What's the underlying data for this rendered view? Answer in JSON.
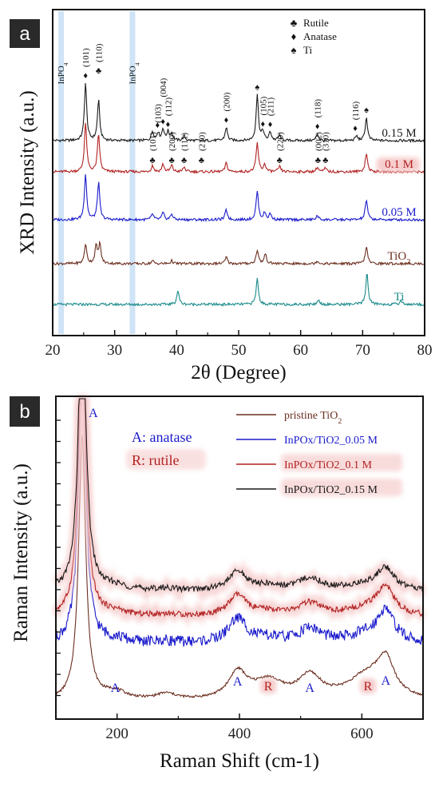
{
  "chart_data": [
    {
      "panel": "a",
      "type": "line",
      "xlabel": "2θ (Degree)",
      "ylabel": "XRD Intensity (a.u.)",
      "xlim": [
        20,
        80
      ],
      "xticks": [
        "20",
        "30",
        "40",
        "50",
        "60",
        "70",
        "80"
      ],
      "highlight_labels": [
        {
          "text": "InPO4",
          "x": 21.3
        },
        {
          "text": "InPO4",
          "x": 32.8
        }
      ],
      "series": [
        {
          "name": "0.15 M",
          "color": "#1a1a1a",
          "offset": 4,
          "peaks": [
            [
              25.3,
              10
            ],
            [
              27.4,
              7
            ],
            [
              36.1,
              1.6
            ],
            [
              37.0,
              1.4
            ],
            [
              37.8,
              2.0
            ],
            [
              38.6,
              1.5
            ],
            [
              39.2,
              1.2
            ],
            [
              41.2,
              0.8
            ],
            [
              48.0,
              2.3
            ],
            [
              53.0,
              8
            ],
            [
              53.9,
              1.6
            ],
            [
              55.1,
              1.5
            ],
            [
              56.6,
              0.9
            ],
            [
              62.7,
              1.2
            ],
            [
              69.0,
              0.8
            ],
            [
              70.6,
              4
            ]
          ]
        },
        {
          "name": "0.1 M",
          "color": "#b22222",
          "offset": 3,
          "peaks": [
            [
              25.3,
              8.5
            ],
            [
              27.4,
              6.5
            ],
            [
              36.1,
              1.1
            ],
            [
              37.8,
              1.3
            ],
            [
              39.2,
              1.1
            ],
            [
              41.2,
              0.8
            ],
            [
              48.0,
              1.5
            ],
            [
              53.0,
              5
            ],
            [
              54.2,
              1.3
            ],
            [
              56.6,
              0.9
            ],
            [
              62.7,
              0.8
            ],
            [
              64.0,
              0.6
            ],
            [
              70.6,
              3.2
            ]
          ]
        },
        {
          "name": "0.05 M",
          "color": "#1a1acc",
          "offset": 2,
          "peaks": [
            [
              25.3,
              8
            ],
            [
              27.4,
              6.5
            ],
            [
              36.1,
              1.0
            ],
            [
              37.8,
              1.2
            ],
            [
              39.2,
              1.0
            ],
            [
              48.0,
              1.7
            ],
            [
              53.0,
              5
            ],
            [
              54.2,
              1.2
            ],
            [
              55.1,
              1.0
            ],
            [
              62.7,
              0.7
            ],
            [
              70.6,
              3.5
            ]
          ]
        },
        {
          "name": "TiO2",
          "color": "#6b2e1f",
          "offset": 1,
          "peaks": [
            [
              25.3,
              3.4
            ],
            [
              27.0,
              3.0
            ],
            [
              27.6,
              3.4
            ],
            [
              36.1,
              0.5
            ],
            [
              39.2,
              0.5
            ],
            [
              48.0,
              1.1
            ],
            [
              53.0,
              2.4
            ],
            [
              54.3,
              1.7
            ],
            [
              62.7,
              0.5
            ],
            [
              70.6,
              3.0
            ]
          ]
        },
        {
          "name": "Ti",
          "color": "#1a8a8a",
          "offset": 0,
          "peaks": [
            [
              40.2,
              2.4
            ],
            [
              53.0,
              4.5
            ],
            [
              62.9,
              0.8
            ],
            [
              70.7,
              5.5
            ],
            [
              76.2,
              0.7
            ]
          ]
        }
      ],
      "legend": [
        {
          "symbol": "♣",
          "label": "Rutile"
        },
        {
          "symbol": "♦",
          "label": "Anatase"
        },
        {
          "symbol": "♠",
          "label": "Ti"
        }
      ],
      "annotations_anatase": [
        {
          "hkl": "(101)",
          "x": 25.3
        },
        {
          "hkl": "(103)",
          "x": 36.9
        },
        {
          "hkl": "(004)",
          "x": 37.8
        },
        {
          "hkl": "(112)",
          "x": 38.6
        },
        {
          "hkl": "(200)",
          "x": 48.0
        },
        {
          "hkl": "(105)",
          "x": 53.9
        },
        {
          "hkl": "(211)",
          "x": 55.1
        },
        {
          "hkl": "(118)",
          "x": 62.7
        },
        {
          "hkl": "(116)",
          "x": 68.8
        }
      ],
      "annotations_rutile": [
        {
          "hkl": "(110)",
          "x": 27.4
        },
        {
          "hkl": "(101)",
          "x": 36.1
        },
        {
          "hkl": "(200)",
          "x": 39.2
        },
        {
          "hkl": "(111)",
          "x": 41.2
        },
        {
          "hkl": "(210)",
          "x": 44.0
        },
        {
          "hkl": "(220)",
          "x": 56.6
        },
        {
          "hkl": "(002)",
          "x": 62.8
        },
        {
          "hkl": "(310)",
          "x": 64.0
        }
      ],
      "annotations_ti": [
        {
          "x": 53.0
        },
        {
          "x": 70.6
        }
      ]
    },
    {
      "panel": "b",
      "type": "line",
      "xlabel": "Raman Shift (cm-1)",
      "ylabel": "Raman Intensity (a.u.)",
      "xlim": [
        100,
        700
      ],
      "xticks": [
        "200",
        "400",
        "600"
      ],
      "legend_notes": [
        "A: anatase",
        "R: rutile"
      ],
      "series": [
        {
          "name": "pristine TiO2",
          "color": "#6b2e1f",
          "offset": 0
        },
        {
          "name": "InPOx/TiO2_0.05 M",
          "color": "#1a1acc",
          "offset": 1
        },
        {
          "name": "InPOx/TiO2_0.1 M",
          "color": "#b22222",
          "offset": 2
        },
        {
          "name": "InPOx/TiO2_0.15 M",
          "color": "#1a1a1a",
          "offset": 3
        }
      ],
      "peaks": [
        {
          "x": 143,
          "heights": [
            13,
            14,
            14.5,
            15
          ]
        },
        {
          "x": 197,
          "heights": [
            0.4,
            0.2,
            0.2,
            0.2
          ]
        },
        {
          "x": 280,
          "heights": [
            0.3,
            0.1,
            0.1,
            0.1
          ]
        },
        {
          "x": 397,
          "heights": [
            1.3,
            1.2,
            1.0,
            0.9
          ]
        },
        {
          "x": 447,
          "heights": [
            0.9,
            0.2,
            0.2,
            0.2
          ]
        },
        {
          "x": 515,
          "heights": [
            1.1,
            0.7,
            0.6,
            0.6
          ]
        },
        {
          "x": 610,
          "heights": [
            1.2,
            0.4,
            0.4,
            0.3
          ]
        },
        {
          "x": 639,
          "heights": [
            1.6,
            1.5,
            1.3,
            1.0
          ]
        }
      ],
      "peak_labels": [
        {
          "text": "A",
          "x": 143,
          "color": "#1a1acc"
        },
        {
          "text": "A",
          "x": 197,
          "color": "#1a1acc"
        },
        {
          "text": "A",
          "x": 397,
          "color": "#1a1acc"
        },
        {
          "text": "R",
          "x": 447,
          "color": "#b22222"
        },
        {
          "text": "A",
          "x": 515,
          "color": "#1a1acc"
        },
        {
          "text": "R",
          "x": 610,
          "color": "#b22222"
        },
        {
          "text": "A",
          "x": 639,
          "color": "#1a1acc"
        }
      ]
    }
  ],
  "colors": {
    "panel_badge": "#2a2a2a",
    "highlight": "#c7dff5",
    "series_label_glow": "#f6cccc"
  }
}
